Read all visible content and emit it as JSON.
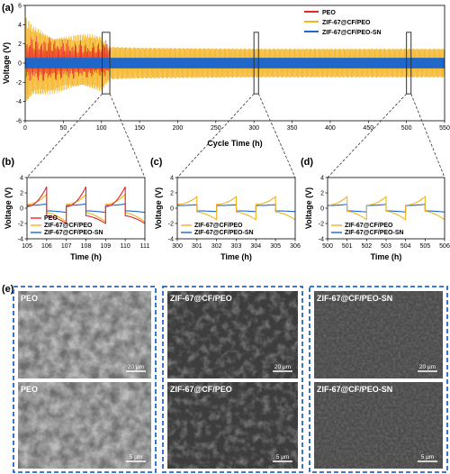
{
  "colors": {
    "PEO": "#e8232a",
    "ZIF-67@CF/PEO": "#f5b21b",
    "ZIF-67@CF/PEO-SN": "#1f67c9",
    "sem_frame": "#1f67c9"
  },
  "chart_data": [
    {
      "panel": "(a)",
      "type": "line",
      "xlabel": "Cycle Time (h)",
      "ylabel": "Voltage (V)",
      "xlim": [
        0,
        550
      ],
      "ylim": [
        -6,
        6
      ],
      "xticks": [
        0,
        50,
        100,
        150,
        200,
        250,
        300,
        350,
        400,
        450,
        500,
        550
      ],
      "yticks": [
        -6,
        -4,
        -2,
        0,
        2,
        4,
        6
      ],
      "legend": "top-right",
      "zoom_boxes": [
        [
          101,
          111
        ],
        [
          300,
          306
        ],
        [
          500,
          506
        ]
      ],
      "series": [
        {
          "name": "PEO",
          "kind": "oscillation",
          "x_end": 112,
          "amp_start": 3.0,
          "amp_end": 2.0,
          "neg_ratio": 0.7
        },
        {
          "name": "ZIF-67@CF/PEO",
          "kind": "oscillation",
          "x_end": 550,
          "envelope_x": [
            0,
            10,
            30,
            60,
            100,
            112,
            150,
            300,
            550
          ],
          "envelope_top": [
            5.0,
            4.0,
            3.4,
            3.0,
            3.1,
            1.7,
            1.6,
            1.5,
            1.5
          ],
          "envelope_bottom": [
            -5.4,
            -3.8,
            -3.3,
            -2.9,
            -3.1,
            -1.7,
            -1.6,
            -1.5,
            -1.5
          ]
        },
        {
          "name": "ZIF-67@CF/PEO-SN",
          "kind": "oscillation",
          "x_end": 550,
          "amp": 0.55
        }
      ]
    },
    {
      "panel": "(b)",
      "type": "line",
      "xlabel": "Time (h)",
      "ylabel": "Voltage (V)",
      "xlim": [
        105,
        111
      ],
      "ylim": [
        -4,
        4
      ],
      "xticks": [
        105,
        106,
        107,
        108,
        109,
        110,
        111
      ],
      "yticks": [
        -4,
        -2,
        0,
        2,
        4
      ],
      "legend": "bottom-left",
      "series": [
        {
          "name": "PEO",
          "period": 2,
          "phase": 105,
          "pos_start": 0.2,
          "pos_end": 2.8,
          "neg_start": -1.0,
          "neg_end": -2.0
        },
        {
          "name": "ZIF-67@CF/PEO",
          "period": 2,
          "phase": 105,
          "pos_start": 0.5,
          "pos_end": 1.8,
          "neg_start": -0.6,
          "neg_end": -1.8
        },
        {
          "name": "ZIF-67@CF/PEO-SN",
          "period": 2,
          "phase": 105,
          "pos_start": 0.35,
          "pos_end": 0.55,
          "neg_start": -0.35,
          "neg_end": -0.55
        }
      ]
    },
    {
      "panel": "(c)",
      "type": "line",
      "xlabel": "Time (h)",
      "ylabel": "Voltage (V)",
      "xlim": [
        300,
        306
      ],
      "ylim": [
        -4,
        4
      ],
      "xticks": [
        300,
        301,
        302,
        303,
        304,
        305,
        306
      ],
      "yticks": [
        -4,
        -2,
        0,
        2,
        4
      ],
      "legend": "bottom-left",
      "series": [
        {
          "name": "ZIF-67@CF/PEO",
          "period": 2,
          "phase": 300,
          "pos_start": 0.5,
          "pos_end": 1.5,
          "neg_start": -0.5,
          "neg_end": -1.5
        },
        {
          "name": "ZIF-67@CF/PEO-SN",
          "period": 2,
          "phase": 300,
          "pos_start": 0.35,
          "pos_end": 0.45,
          "neg_start": -0.35,
          "neg_end": -0.45
        }
      ]
    },
    {
      "panel": "(d)",
      "type": "line",
      "xlabel": "Time (h)",
      "ylabel": "Voltage (V)",
      "xlim": [
        500,
        506
      ],
      "ylim": [
        -4,
        4
      ],
      "xticks": [
        500,
        501,
        502,
        503,
        504,
        505,
        506
      ],
      "yticks": [
        -4,
        -2,
        0,
        2,
        4
      ],
      "legend": "bottom-left",
      "series": [
        {
          "name": "ZIF-67@CF/PEO",
          "period": 2,
          "phase": 500,
          "pos_start": 0.4,
          "pos_end": 1.5,
          "neg_start": -0.4,
          "neg_end": -1.5
        },
        {
          "name": "ZIF-67@CF/PEO-SN",
          "period": 2,
          "phase": 500,
          "pos_start": 0.35,
          "pos_end": 0.5,
          "neg_start": -0.35,
          "neg_end": -0.5
        }
      ]
    }
  ],
  "panel_e": {
    "letter": "(e)",
    "groups": [
      {
        "images": [
          {
            "label": "PEO",
            "scale": "20 μm",
            "tone": "rough"
          },
          {
            "label": "PEO",
            "scale": "5 μm",
            "tone": "rough"
          }
        ]
      },
      {
        "images": [
          {
            "label": "ZIF-67@CF/PEO",
            "scale": "20 μm",
            "tone": "medium"
          },
          {
            "label": "ZIF-67@CF/PEO",
            "scale": "5 μm",
            "tone": "medium"
          }
        ]
      },
      {
        "images": [
          {
            "label": "ZIF-67@CF/PEO-SN",
            "scale": "20 μm",
            "tone": "smooth"
          },
          {
            "label": "ZIF-67@CF/PEO-SN",
            "scale": "5 μm",
            "tone": "smooth"
          }
        ]
      }
    ]
  }
}
